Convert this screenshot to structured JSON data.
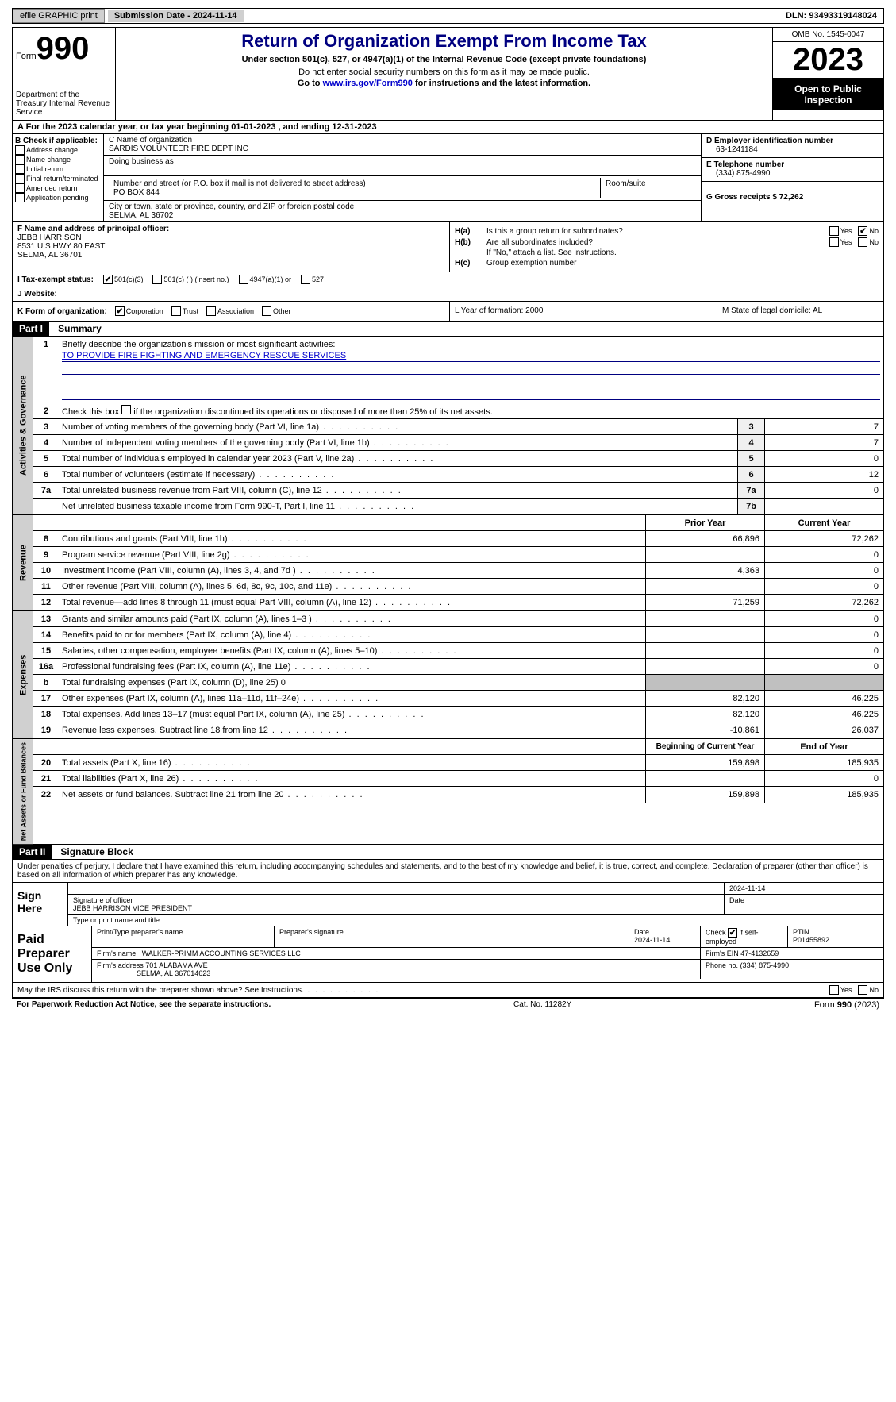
{
  "topbar": {
    "efile_label": "efile GRAPHIC print",
    "submission_date": "Submission Date - 2024-11-14",
    "dln": "DLN: 93493319148024"
  },
  "header": {
    "form_label": "Form",
    "form_number": "990",
    "dept": "Department of the Treasury Internal Revenue Service",
    "title": "Return of Organization Exempt From Income Tax",
    "subtitle": "Under section 501(c), 527, or 4947(a)(1) of the Internal Revenue Code (except private foundations)",
    "note1": "Do not enter social security numbers on this form as it may be made public.",
    "note2_prefix": "Go to ",
    "note2_link": "www.irs.gov/Form990",
    "note2_suffix": " for instructions and the latest information.",
    "omb": "OMB No. 1545-0047",
    "year": "2023",
    "inspection": "Open to Public Inspection"
  },
  "rowA": "A For the 2023 calendar year, or tax year beginning 01-01-2023   , and ending 12-31-2023",
  "sectionB": {
    "label": "B Check if applicable:",
    "items": [
      "Address change",
      "Name change",
      "Initial return",
      "Final return/terminated",
      "Amended return",
      "Application pending"
    ]
  },
  "sectionC": {
    "name_label": "C Name of organization",
    "name": "SARDIS VOLUNTEER FIRE DEPT INC",
    "dba_label": "Doing business as",
    "addr_label": "Number and street (or P.O. box if mail is not delivered to street address)",
    "addr": "PO BOX 844",
    "room_label": "Room/suite",
    "city_label": "City or town, state or province, country, and ZIP or foreign postal code",
    "city": "SELMA, AL  36702"
  },
  "sectionD": {
    "label": "D Employer identification number",
    "value": "63-1241184"
  },
  "sectionE": {
    "label": "E Telephone number",
    "value": "(334) 875-4990"
  },
  "sectionG": {
    "label": "G Gross receipts $ 72,262"
  },
  "sectionF": {
    "label": "F  Name and address of principal officer:",
    "name": "JEBB HARRISON",
    "addr1": "8531 U S HWY 80 EAST",
    "addr2": "SELMA, AL  36701"
  },
  "sectionH": {
    "ha_label": "H(a)",
    "ha_text": "Is this a group return for subordinates?",
    "hb_label": "H(b)",
    "hb_text": "Are all subordinates included?",
    "hb_note": "If \"No,\" attach a list. See instructions.",
    "hc_label": "H(c)",
    "hc_text": "Group exemption number"
  },
  "statusI": {
    "label": "I   Tax-exempt status:",
    "opt1": "501(c)(3)",
    "opt2": "501(c) (  ) (insert no.)",
    "opt3": "4947(a)(1) or",
    "opt4": "527"
  },
  "sectionJ": "J   Website:",
  "sectionK": {
    "label": "K Form of organization:",
    "opts": [
      "Corporation",
      "Trust",
      "Association",
      "Other"
    ]
  },
  "sectionL": "L Year of formation: 2000",
  "sectionM": "M State of legal domicile: AL",
  "part1": {
    "header": "Part I",
    "title": "Summary",
    "vtab1": "Activities & Governance",
    "vtab2": "Revenue",
    "vtab3": "Expenses",
    "vtab4": "Net Assets or Fund Balances",
    "line1_label": "Briefly describe the organization's mission or most significant activities:",
    "line1_mission": "TO PROVIDE FIRE FIGHTING AND EMERGENCY RESCUE SERVICES",
    "line2": "Check this box       if the organization discontinued its operations or disposed of more than 25% of its net assets.",
    "lines_gov": [
      {
        "n": "3",
        "t": "Number of voting members of the governing body (Part VI, line 1a)",
        "b": "3",
        "v": "7"
      },
      {
        "n": "4",
        "t": "Number of independent voting members of the governing body (Part VI, line 1b)",
        "b": "4",
        "v": "7"
      },
      {
        "n": "5",
        "t": "Total number of individuals employed in calendar year 2023 (Part V, line 2a)",
        "b": "5",
        "v": "0"
      },
      {
        "n": "6",
        "t": "Total number of volunteers (estimate if necessary)",
        "b": "6",
        "v": "12"
      },
      {
        "n": "7a",
        "t": "Total unrelated business revenue from Part VIII, column (C), line 12",
        "b": "7a",
        "v": "0"
      },
      {
        "n": "",
        "t": "Net unrelated business taxable income from Form 990-T, Part I, line 11",
        "b": "7b",
        "v": ""
      }
    ],
    "col_prior": "Prior Year",
    "col_current": "Current Year",
    "lines_rev": [
      {
        "n": "8",
        "t": "Contributions and grants (Part VIII, line 1h)",
        "p": "66,896",
        "c": "72,262"
      },
      {
        "n": "9",
        "t": "Program service revenue (Part VIII, line 2g)",
        "p": "",
        "c": "0"
      },
      {
        "n": "10",
        "t": "Investment income (Part VIII, column (A), lines 3, 4, and 7d )",
        "p": "4,363",
        "c": "0"
      },
      {
        "n": "11",
        "t": "Other revenue (Part VIII, column (A), lines 5, 6d, 8c, 9c, 10c, and 11e)",
        "p": "",
        "c": "0"
      },
      {
        "n": "12",
        "t": "Total revenue—add lines 8 through 11 (must equal Part VIII, column (A), line 12)",
        "p": "71,259",
        "c": "72,262"
      }
    ],
    "lines_exp": [
      {
        "n": "13",
        "t": "Grants and similar amounts paid (Part IX, column (A), lines 1–3 )",
        "p": "",
        "c": "0"
      },
      {
        "n": "14",
        "t": "Benefits paid to or for members (Part IX, column (A), line 4)",
        "p": "",
        "c": "0"
      },
      {
        "n": "15",
        "t": "Salaries, other compensation, employee benefits (Part IX, column (A), lines 5–10)",
        "p": "",
        "c": "0"
      },
      {
        "n": "16a",
        "t": "Professional fundraising fees (Part IX, column (A), line 11e)",
        "p": "",
        "c": "0"
      },
      {
        "n": "b",
        "t": "Total fundraising expenses (Part IX, column (D), line 25) 0",
        "p": "shaded",
        "c": "shaded"
      },
      {
        "n": "17",
        "t": "Other expenses (Part IX, column (A), lines 11a–11d, 11f–24e)",
        "p": "82,120",
        "c": "46,225"
      },
      {
        "n": "18",
        "t": "Total expenses. Add lines 13–17 (must equal Part IX, column (A), line 25)",
        "p": "82,120",
        "c": "46,225"
      },
      {
        "n": "19",
        "t": "Revenue less expenses. Subtract line 18 from line 12",
        "p": "-10,861",
        "c": "26,037"
      }
    ],
    "col_begin": "Beginning of Current Year",
    "col_end": "End of Year",
    "lines_net": [
      {
        "n": "20",
        "t": "Total assets (Part X, line 16)",
        "p": "159,898",
        "c": "185,935"
      },
      {
        "n": "21",
        "t": "Total liabilities (Part X, line 26)",
        "p": "",
        "c": "0"
      },
      {
        "n": "22",
        "t": "Net assets or fund balances. Subtract line 21 from line 20",
        "p": "159,898",
        "c": "185,935"
      }
    ]
  },
  "part2": {
    "header": "Part II",
    "title": "Signature Block",
    "declaration": "Under penalties of perjury, I declare that I have examined this return, including accompanying schedules and statements, and to the best of my knowledge and belief, it is true, correct, and complete. Declaration of preparer (other than officer) is based on all information of which preparer has any knowledge.",
    "sign_here": "Sign Here",
    "sig_date": "2024-11-14",
    "sig_officer_label": "Signature of officer",
    "sig_officer": "JEBB HARRISON  VICE PRESIDENT",
    "sig_name_label": "Type or print name and title",
    "sig_date_label": "Date",
    "paid_label": "Paid Preparer Use Only",
    "prep_name_label": "Print/Type preparer's name",
    "prep_sig_label": "Preparer's signature",
    "prep_date_label": "Date",
    "prep_date": "2024-11-14",
    "prep_self_label": "Check        if self-employed",
    "prep_ptin_label": "PTIN",
    "prep_ptin": "P01455892",
    "firm_name_label": "Firm's name",
    "firm_name": "WALKER-PRIMM ACCOUNTING SERVICES LLC",
    "firm_ein_label": "Firm's EIN",
    "firm_ein": "47-4132659",
    "firm_addr_label": "Firm's address",
    "firm_addr1": "701 ALABAMA AVE",
    "firm_addr2": "SELMA, AL  367014623",
    "firm_phone_label": "Phone no.",
    "firm_phone": "(334) 875-4990",
    "irs_discuss": "May the IRS discuss this return with the preparer shown above? See Instructions."
  },
  "footer": {
    "left": "For Paperwork Reduction Act Notice, see the separate instructions.",
    "mid": "Cat. No. 11282Y",
    "right": "Form 990 (2023)"
  },
  "labels": {
    "yes": "Yes",
    "no": "No"
  }
}
